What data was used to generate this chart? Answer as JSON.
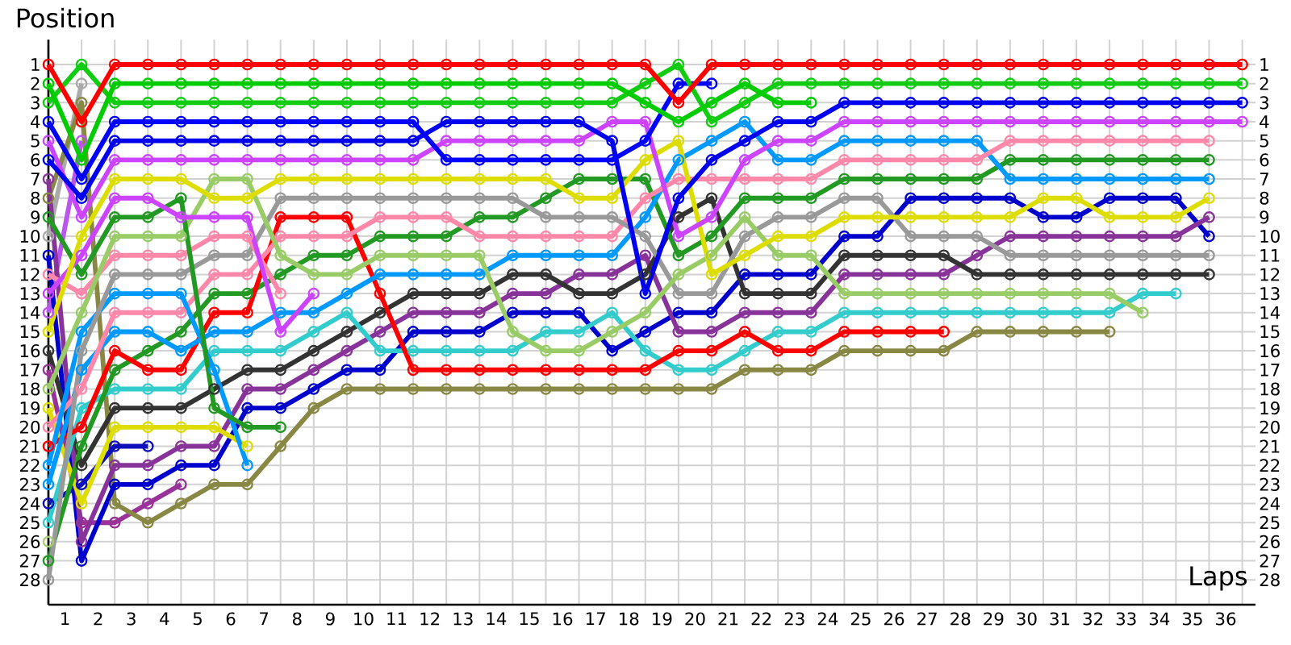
{
  "chart_data": {
    "type": "line",
    "xlabel": "Laps",
    "ylabel": "Position",
    "x": [
      0.5,
      1.5,
      2.5,
      3.5,
      4.5,
      5.5,
      6.5,
      7.5,
      8.5,
      9.5,
      10.5,
      11.5,
      12.5,
      13.5,
      14.5,
      15.5,
      16.5,
      17.5,
      18.5,
      19.5,
      20.5,
      21.5,
      22.5,
      23.5,
      24.5,
      25.5,
      26.5,
      27.5,
      28.5,
      29.5,
      30.5,
      31.5,
      32.5,
      33.5,
      34.5,
      35.5,
      36.5
    ],
    "xlim": [
      0.5,
      36.9
    ],
    "xticks": [
      1,
      2,
      3,
      4,
      5,
      6,
      7,
      8,
      9,
      10,
      11,
      12,
      13,
      14,
      15,
      16,
      17,
      18,
      19,
      20,
      21,
      22,
      23,
      24,
      25,
      26,
      27,
      28,
      29,
      30,
      31,
      32,
      33,
      34,
      35,
      36
    ],
    "ylim": [
      29.3,
      -0.3
    ],
    "yticks": [
      1,
      2,
      3,
      4,
      5,
      6,
      7,
      8,
      9,
      10,
      11,
      12,
      13,
      14,
      15,
      16,
      17,
      18,
      19,
      20,
      21,
      22,
      23,
      24,
      25,
      26,
      27,
      28
    ],
    "y2lim": [
      29.3,
      -0.3
    ],
    "y2ticks": [
      1,
      2,
      3,
      4,
      5,
      6,
      7,
      8,
      9,
      10,
      11,
      12,
      13,
      14,
      15,
      16,
      17,
      18,
      19,
      20,
      21,
      22,
      23,
      24,
      25,
      26,
      27,
      28
    ],
    "grid": true,
    "marker": "circle",
    "line_style": "solid",
    "series": [
      {
        "color": "#ff0000",
        "values": [
          1,
          4,
          1,
          1,
          1,
          1,
          1,
          1,
          1,
          1,
          1,
          1,
          1,
          1,
          1,
          1,
          1,
          1,
          1,
          3,
          1,
          1,
          1,
          1,
          1,
          1,
          1,
          1,
          1,
          1,
          1,
          1,
          1,
          1,
          1,
          1,
          1
        ]
      },
      {
        "color": "#00cc00",
        "values": [
          2,
          6,
          2,
          2,
          2,
          2,
          2,
          2,
          2,
          2,
          2,
          2,
          2,
          2,
          2,
          2,
          2,
          2,
          3,
          4,
          3,
          2,
          3,
          3,
          null,
          null,
          null,
          null,
          null,
          null,
          null,
          null,
          null,
          null,
          null,
          null,
          null
        ]
      },
      {
        "color": "#11cc11",
        "values": [
          3,
          1,
          3,
          3,
          3,
          3,
          3,
          3,
          3,
          3,
          3,
          3,
          3,
          3,
          3,
          3,
          3,
          3,
          2,
          1,
          4,
          3,
          2,
          2,
          2,
          2,
          2,
          2,
          2,
          2,
          2,
          2,
          2,
          2,
          2,
          2,
          2
        ]
      },
      {
        "color": "#0000ff",
        "values": [
          4,
          7,
          4,
          4,
          4,
          4,
          4,
          4,
          4,
          4,
          4,
          4,
          6,
          6,
          6,
          6,
          6,
          6,
          5,
          2,
          2,
          null,
          null,
          null,
          null,
          null,
          null,
          null,
          null,
          null,
          null,
          null,
          null,
          null,
          null,
          null,
          null
        ]
      },
      {
        "color": "#0000ee",
        "values": [
          6,
          8,
          5,
          5,
          5,
          5,
          5,
          5,
          5,
          5,
          5,
          5,
          4,
          4,
          4,
          4,
          4,
          5,
          13,
          8,
          6,
          5,
          4,
          4,
          3,
          3,
          3,
          3,
          3,
          3,
          3,
          3,
          3,
          3,
          3,
          3,
          3
        ]
      },
      {
        "color": "#cc44ff",
        "values": [
          5,
          9,
          6,
          6,
          6,
          6,
          6,
          6,
          6,
          6,
          6,
          6,
          5,
          5,
          5,
          5,
          5,
          4,
          4,
          10,
          9,
          6,
          5,
          5,
          4,
          4,
          4,
          4,
          4,
          4,
          4,
          4,
          4,
          4,
          4,
          4,
          4
        ]
      },
      {
        "color": "#dddd00",
        "values": [
          15,
          10,
          7,
          7,
          7,
          8,
          8,
          7,
          7,
          7,
          7,
          7,
          7,
          7,
          7,
          7,
          8,
          8,
          6,
          5,
          12,
          11,
          10,
          10,
          9,
          9,
          9,
          9,
          9,
          9,
          8,
          8,
          9,
          9,
          9,
          8,
          null
        ]
      },
      {
        "color": "#cc44ff",
        "values": [
          13,
          11,
          8,
          8,
          9,
          9,
          9,
          15,
          13,
          null,
          null,
          null,
          null,
          null,
          null,
          null,
          null,
          null,
          null,
          null,
          null,
          null,
          null,
          null,
          null,
          null,
          null,
          null,
          null,
          null,
          null,
          null,
          null,
          null,
          null,
          null,
          null
        ]
      },
      {
        "color": "#229922",
        "values": [
          9,
          12,
          9,
          9,
          8,
          19,
          20,
          20,
          null,
          null,
          null,
          null,
          null,
          null,
          null,
          null,
          null,
          null,
          null,
          null,
          null,
          null,
          null,
          null,
          null,
          null,
          null,
          null,
          null,
          null,
          null,
          null,
          null,
          null,
          null,
          null,
          null
        ]
      },
      {
        "color": "#99cc66",
        "values": [
          18,
          14,
          10,
          10,
          10,
          7,
          7,
          11,
          12,
          12,
          11,
          11,
          11,
          11,
          15,
          16,
          16,
          15,
          14,
          12,
          11,
          9,
          11,
          11,
          13,
          13,
          13,
          13,
          13,
          13,
          13,
          13,
          13,
          14,
          null,
          null,
          null
        ]
      },
      {
        "color": "#ff88aa",
        "values": [
          12,
          13,
          11,
          11,
          11,
          10,
          10,
          13,
          null,
          null,
          null,
          null,
          null,
          null,
          null,
          null,
          null,
          null,
          null,
          null,
          null,
          null,
          null,
          null,
          null,
          null,
          null,
          null,
          null,
          null,
          null,
          null,
          null,
          null,
          null,
          null,
          null
        ]
      },
      {
        "color": "#999999",
        "values": [
          28,
          16,
          12,
          12,
          12,
          11,
          11,
          8,
          8,
          8,
          8,
          8,
          8,
          8,
          8,
          9,
          9,
          9,
          10,
          13,
          13,
          10,
          9,
          9,
          8,
          8,
          10,
          10,
          10,
          11,
          11,
          11,
          11,
          11,
          11,
          11,
          null
        ]
      },
      {
        "color": "#0099ff",
        "values": [
          22,
          15,
          13,
          13,
          13,
          17,
          22,
          null,
          null,
          null,
          null,
          null,
          null,
          null,
          null,
          null,
          null,
          null,
          null,
          null,
          null,
          null,
          null,
          null,
          null,
          null,
          null,
          null,
          null,
          null,
          null,
          null,
          null,
          null,
          null,
          null,
          null
        ]
      },
      {
        "color": "#ff88aa",
        "values": [
          20,
          18,
          14,
          14,
          14,
          12,
          12,
          10,
          10,
          10,
          9,
          9,
          9,
          10,
          10,
          10,
          10,
          10,
          8,
          7,
          7,
          7,
          7,
          7,
          6,
          6,
          6,
          6,
          6,
          5,
          5,
          5,
          5,
          5,
          5,
          5,
          null
        ]
      },
      {
        "color": "#0099ff",
        "values": [
          23,
          17,
          15,
          15,
          16,
          15,
          15,
          14,
          14,
          13,
          12,
          12,
          12,
          12,
          11,
          11,
          11,
          11,
          9,
          6,
          5,
          4,
          6,
          6,
          5,
          5,
          5,
          5,
          5,
          7,
          7,
          7,
          7,
          7,
          7,
          7,
          null
        ]
      },
      {
        "color": "#ff0000",
        "values": [
          21,
          20,
          16,
          17,
          17,
          14,
          14,
          9,
          9,
          9,
          13,
          17,
          17,
          17,
          17,
          17,
          17,
          17,
          17,
          16,
          16,
          15,
          16,
          16,
          15,
          15,
          15,
          15,
          null,
          null,
          null,
          null,
          null,
          null,
          null,
          null,
          null
        ]
      },
      {
        "color": "#229922",
        "values": [
          27,
          21,
          17,
          16,
          15,
          13,
          13,
          12,
          11,
          11,
          10,
          10,
          10,
          9,
          9,
          8,
          7,
          7,
          7,
          11,
          10,
          8,
          8,
          8,
          7,
          7,
          7,
          7,
          7,
          6,
          6,
          6,
          6,
          6,
          6,
          6,
          null
        ]
      },
      {
        "color": "#33cccc",
        "values": [
          25,
          19,
          18,
          18,
          18,
          16,
          16,
          16,
          15,
          14,
          16,
          16,
          16,
          16,
          16,
          15,
          15,
          14,
          16,
          17,
          17,
          16,
          15,
          15,
          14,
          14,
          14,
          14,
          14,
          14,
          14,
          14,
          14,
          13,
          13,
          null,
          null
        ]
      },
      {
        "color": "#333333",
        "values": [
          16,
          22,
          19,
          19,
          19,
          18,
          17,
          17,
          16,
          15,
          14,
          13,
          13,
          13,
          12,
          12,
          13,
          13,
          12,
          9,
          8,
          13,
          13,
          13,
          11,
          11,
          11,
          11,
          12,
          12,
          12,
          12,
          12,
          12,
          12,
          12,
          null
        ]
      },
      {
        "color": "#dddd00",
        "values": [
          19,
          24,
          20,
          20,
          20,
          20,
          21,
          null,
          null,
          null,
          null,
          null,
          null,
          null,
          null,
          null,
          null,
          null,
          null,
          null,
          null,
          null,
          null,
          null,
          null,
          null,
          null,
          null,
          null,
          null,
          null,
          null,
          null,
          null,
          null,
          null,
          null
        ]
      },
      {
        "color": "#1010bb",
        "values": [
          24,
          23,
          21,
          21,
          null,
          null,
          null,
          null,
          null,
          null,
          null,
          null,
          null,
          null,
          null,
          null,
          null,
          null,
          null,
          null,
          null,
          null,
          null,
          null,
          null,
          null,
          null,
          null,
          null,
          null,
          null,
          null,
          null,
          null,
          null,
          null,
          null
        ]
      },
      {
        "color": "#883399",
        "values": [
          7,
          26,
          22,
          22,
          21,
          21,
          18,
          18,
          17,
          16,
          15,
          14,
          14,
          14,
          13,
          13,
          12,
          12,
          11,
          15,
          15,
          14,
          14,
          14,
          12,
          12,
          12,
          12,
          11,
          10,
          10,
          10,
          10,
          10,
          10,
          9,
          null
        ]
      },
      {
        "color": "#0000cc",
        "values": [
          11,
          27,
          23,
          23,
          22,
          22,
          19,
          19,
          18,
          17,
          17,
          15,
          15,
          15,
          14,
          14,
          14,
          16,
          15,
          14,
          14,
          12,
          12,
          12,
          10,
          10,
          8,
          8,
          8,
          8,
          9,
          9,
          8,
          8,
          8,
          10,
          null
        ]
      },
      {
        "color": "#888844",
        "values": [
          8,
          3,
          24,
          25,
          24,
          23,
          23,
          21,
          19,
          18,
          18,
          18,
          18,
          18,
          18,
          18,
          18,
          18,
          18,
          18,
          18,
          17,
          17,
          17,
          16,
          16,
          16,
          16,
          15,
          15,
          15,
          15,
          15,
          null,
          null,
          null,
          null
        ]
      },
      {
        "color": "#993399",
        "values": [
          17,
          25,
          25,
          24,
          23,
          null,
          null,
          null,
          null,
          null,
          null,
          null,
          null,
          null,
          null,
          null,
          null,
          null,
          null,
          null,
          null,
          null,
          null,
          null,
          null,
          null,
          null,
          null,
          null,
          null,
          null,
          null,
          null,
          null,
          null,
          null,
          null
        ]
      },
      {
        "color": "#aaaaaa",
        "values": [
          10,
          2,
          null,
          null,
          null,
          null,
          null,
          null,
          null,
          null,
          null,
          null,
          null,
          null,
          null,
          null,
          null,
          null,
          null,
          null,
          null,
          null,
          null,
          null,
          null,
          null,
          null,
          null,
          null,
          null,
          null,
          null,
          null,
          null,
          null,
          null,
          null
        ]
      },
      {
        "color": "#bb55ee",
        "values": [
          14,
          5,
          null,
          null,
          null,
          null,
          null,
          null,
          null,
          null,
          null,
          null,
          null,
          null,
          null,
          null,
          null,
          null,
          null,
          null,
          null,
          null,
          null,
          null,
          null,
          null,
          null,
          null,
          null,
          null,
          null,
          null,
          null,
          null,
          null,
          null,
          null
        ]
      },
      {
        "color": "#aacc77",
        "values": [
          26,
          null,
          null,
          null,
          null,
          null,
          null,
          null,
          null,
          null,
          null,
          null,
          null,
          null,
          null,
          null,
          null,
          null,
          null,
          null,
          null,
          null,
          null,
          null,
          null,
          null,
          null,
          null,
          null,
          null,
          null,
          null,
          null,
          null,
          null,
          null,
          null
        ]
      }
    ]
  }
}
